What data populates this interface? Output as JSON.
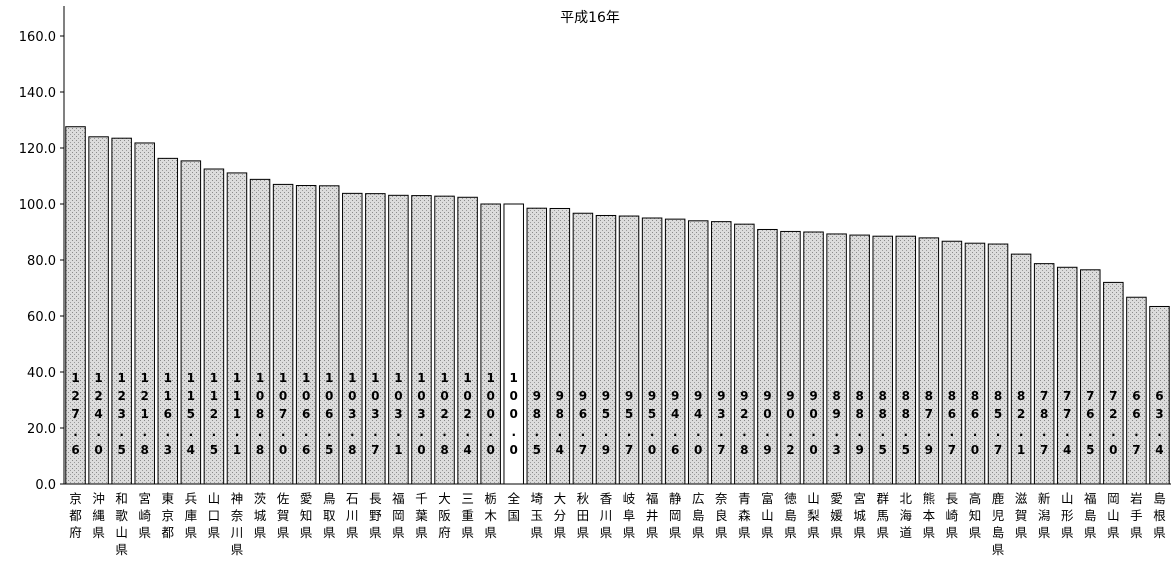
{
  "chart_data": {
    "type": "bar",
    "title": "平成16年",
    "xlabel": "",
    "ylabel": "",
    "ylim": [
      0,
      160
    ],
    "yticks": [
      0,
      20,
      40,
      60,
      80,
      100,
      120,
      140,
      160
    ],
    "ytick_labels": [
      "0.0",
      "20.0",
      "40.0",
      "60.0",
      "80.0",
      "100.0",
      "120.0",
      "140.0",
      "160.0"
    ],
    "grid": false,
    "legend": "none",
    "colors": {
      "bar_fill": "#d4d4d4",
      "highlight_fill": "#ffffff",
      "bar_stroke": "#000000"
    },
    "highlight_category": "全国",
    "categories": [
      "京都府",
      "沖縄県",
      "和歌山県",
      "宮崎県",
      "東京都",
      "兵庫県",
      "山口県",
      "神奈川県",
      "茨城県",
      "佐賀県",
      "愛知県",
      "鳥取県",
      "石川県",
      "長野県",
      "福岡県",
      "千葉県",
      "大阪府",
      "三重県",
      "栃木県",
      "全国",
      "埼玉県",
      "大分県",
      "秋田県",
      "香川県",
      "岐阜県",
      "福井県",
      "静岡県",
      "広島県",
      "奈良県",
      "青森県",
      "富山県",
      "徳島県",
      "山梨県",
      "愛媛県",
      "宮城県",
      "群馬県",
      "北海道",
      "熊本県",
      "長崎県",
      "高知県",
      "鹿児島県",
      "滋賀県",
      "新潟県",
      "山形県",
      "福島県",
      "岡山県",
      "岩手県",
      "島根県"
    ],
    "values": [
      127.6,
      124.0,
      123.5,
      121.8,
      116.3,
      115.4,
      112.5,
      111.1,
      108.8,
      107.0,
      106.6,
      106.5,
      103.8,
      103.7,
      103.1,
      103.0,
      102.8,
      102.4,
      100.0,
      100.0,
      98.5,
      98.4,
      96.7,
      95.9,
      95.7,
      95.0,
      94.6,
      94.0,
      93.7,
      92.8,
      90.9,
      90.2,
      90.0,
      89.3,
      88.9,
      88.5,
      88.5,
      87.9,
      86.7,
      86.0,
      85.7,
      82.1,
      78.7,
      77.4,
      76.5,
      72.0,
      66.7,
      63.4
    ],
    "value_labels": [
      "127.6",
      "124.0",
      "123.5",
      "121.8",
      "116.3",
      "115.4",
      "112.5",
      "111.1",
      "108.8",
      "107.0",
      "106.6",
      "106.5",
      "103.8",
      "103.7",
      "103.1",
      "103.0",
      "102.8",
      "102.4",
      "100.0",
      "100.0",
      "98.5",
      "98.4",
      "96.7",
      "95.9",
      "95.7",
      "95.0",
      "94.6",
      "94.0",
      "93.7",
      "92.8",
      "90.9",
      "90.2",
      "90.0",
      "89.3",
      "88.9",
      "88.5",
      "88.5",
      "87.9",
      "86.7",
      "86.0",
      "85.7",
      "82.1",
      "78.7",
      "77.4",
      "76.5",
      "72.0",
      "66.7",
      "63.4"
    ]
  }
}
